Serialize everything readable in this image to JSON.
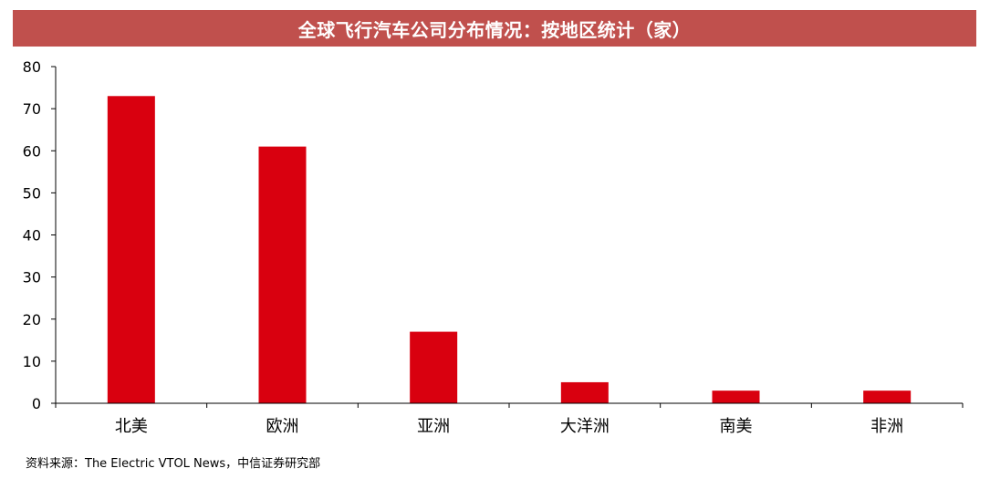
{
  "colors": {
    "title_background": "#c0504d",
    "bar": "#d9000f",
    "axis": "#000000"
  },
  "chart_data": {
    "type": "bar",
    "title": "全球飞行汽车公司分布情况：按地区统计（家）",
    "categories": [
      "北美",
      "欧洲",
      "亚洲",
      "大洋洲",
      "南美",
      "非洲"
    ],
    "values": [
      73,
      61,
      17,
      5,
      3,
      3
    ],
    "ylim": [
      0,
      80
    ],
    "yticks": [
      0,
      10,
      20,
      30,
      40,
      50,
      60,
      70,
      80
    ],
    "xlabel": "",
    "ylabel": "",
    "grid": false,
    "legend": "none"
  },
  "source_note": "资料来源：The Electric VTOL News，中信证券研究部"
}
